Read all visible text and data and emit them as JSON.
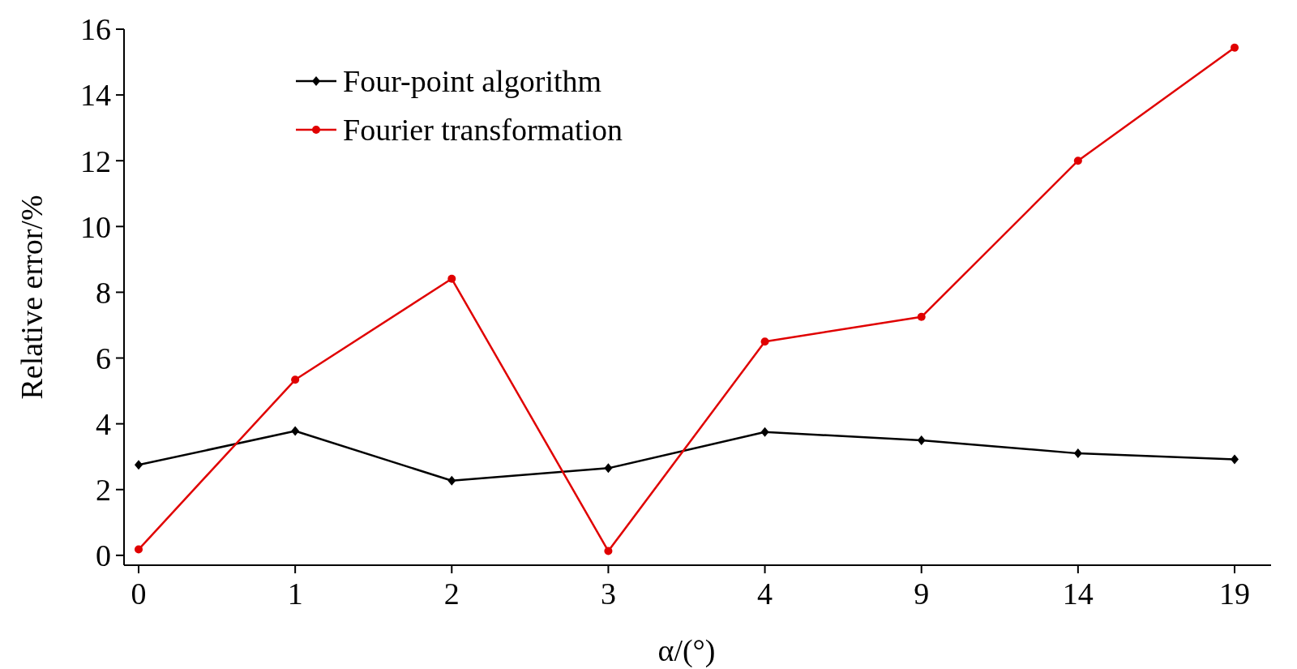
{
  "chart_data": {
    "type": "line",
    "xlabel": "α/(°)",
    "ylabel": "Relative error/%",
    "categories": [
      "0",
      "1",
      "2",
      "3",
      "4",
      "9",
      "14",
      "19"
    ],
    "series": [
      {
        "name": "Four-point algorithm",
        "color": "#000000",
        "marker": "diamond",
        "values": [
          2.75,
          3.78,
          2.27,
          2.65,
          3.75,
          3.5,
          3.1,
          2.92
        ]
      },
      {
        "name": "Fourier transformation",
        "color": "#e00000",
        "marker": "circle",
        "values": [
          0.18,
          5.34,
          8.41,
          0.13,
          6.5,
          7.25,
          12.0,
          15.44
        ]
      }
    ],
    "ylim": [
      -0.3,
      16
    ],
    "yticks": [
      0,
      2,
      4,
      6,
      8,
      10,
      12,
      14,
      16
    ],
    "legend": "top left",
    "grid": false,
    "line_style": "solid"
  }
}
